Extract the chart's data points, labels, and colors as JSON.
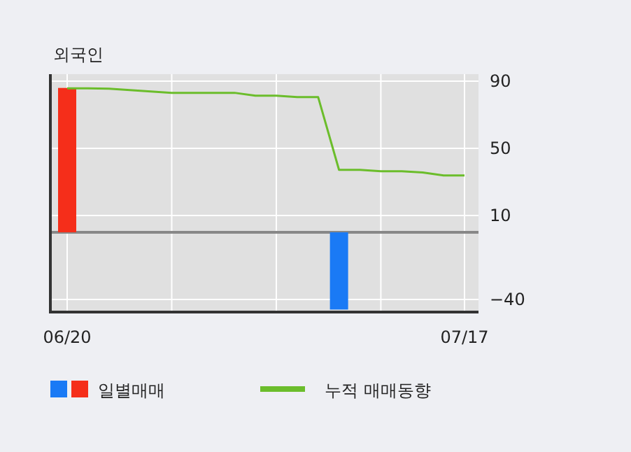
{
  "chart_data": {
    "type": "bar",
    "title": "외국인",
    "categories": [
      "06/20",
      null,
      null,
      null,
      null,
      null,
      null,
      null,
      null,
      null,
      null,
      null,
      null,
      null,
      null,
      null,
      null,
      null,
      null,
      "07/17"
    ],
    "series": [
      {
        "name": "일별매매",
        "colors": [
          "#f52e1a",
          null,
          null,
          null,
          null,
          null,
          null,
          null,
          null,
          null,
          null,
          null,
          null,
          "#1a7af5",
          null,
          null,
          null,
          null,
          null,
          null
        ],
        "values": [
          86,
          null,
          null,
          null,
          null,
          null,
          null,
          null,
          null,
          null,
          null,
          null,
          null,
          -46,
          null,
          null,
          null,
          null,
          null,
          null
        ]
      },
      {
        "name": "누적 매매동향",
        "type": "line",
        "color": "#6bbd2b",
        "values": [
          85.8,
          85.8,
          85.6,
          84.7,
          83.9,
          83.1,
          83.1,
          83.1,
          83.1,
          81.4,
          81.4,
          80.6,
          80.6,
          37.2,
          37.2,
          36.4,
          36.4,
          35.6,
          33.9,
          33.9
        ]
      }
    ],
    "ylim": [
      -47.5,
      94.2
    ],
    "yticks": [
      90,
      50,
      10,
      -40
    ],
    "grid": true,
    "ref_lines": [
      {
        "axis": "y",
        "value": 0,
        "color": "#888888"
      }
    ],
    "legend": "bottom"
  }
}
